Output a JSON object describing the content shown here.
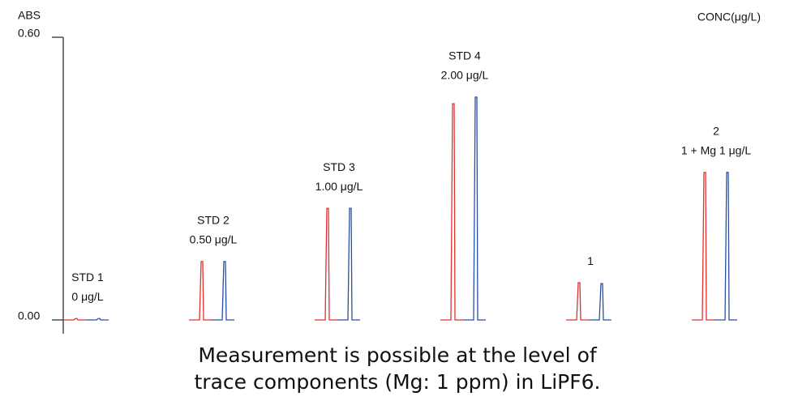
{
  "chart_data": {
    "type": "peak",
    "y_label": "ABS",
    "unit_label": "CONC(μg/L)",
    "categories": [
      "STD 1",
      "STD 2",
      "STD 3",
      "STD 4",
      "1",
      "2"
    ],
    "concentrations": [
      "0 μg/L",
      "0.50 μg/L",
      "1.00 μg/L",
      "2.00 μg/L",
      null,
      "1 + Mg 1 μg/L"
    ],
    "series": [
      {
        "color": "#e03030",
        "values": [
          0.003,
          0.124,
          0.237,
          0.459,
          0.079,
          0.313
        ]
      },
      {
        "color": "#2a4fa0",
        "values": [
          0.003,
          0.124,
          0.237,
          0.473,
          0.077,
          0.313
        ]
      }
    ],
    "ylim": [
      0,
      0.6
    ],
    "yticks": [
      {
        "value": 0,
        "label": "0.00"
      },
      {
        "value": 0.6,
        "label": "0.60"
      }
    ],
    "caption": [
      "Measurement is possible at the level of",
      "trace components (Mg: 1 ppm) in LiPF6."
    ]
  }
}
